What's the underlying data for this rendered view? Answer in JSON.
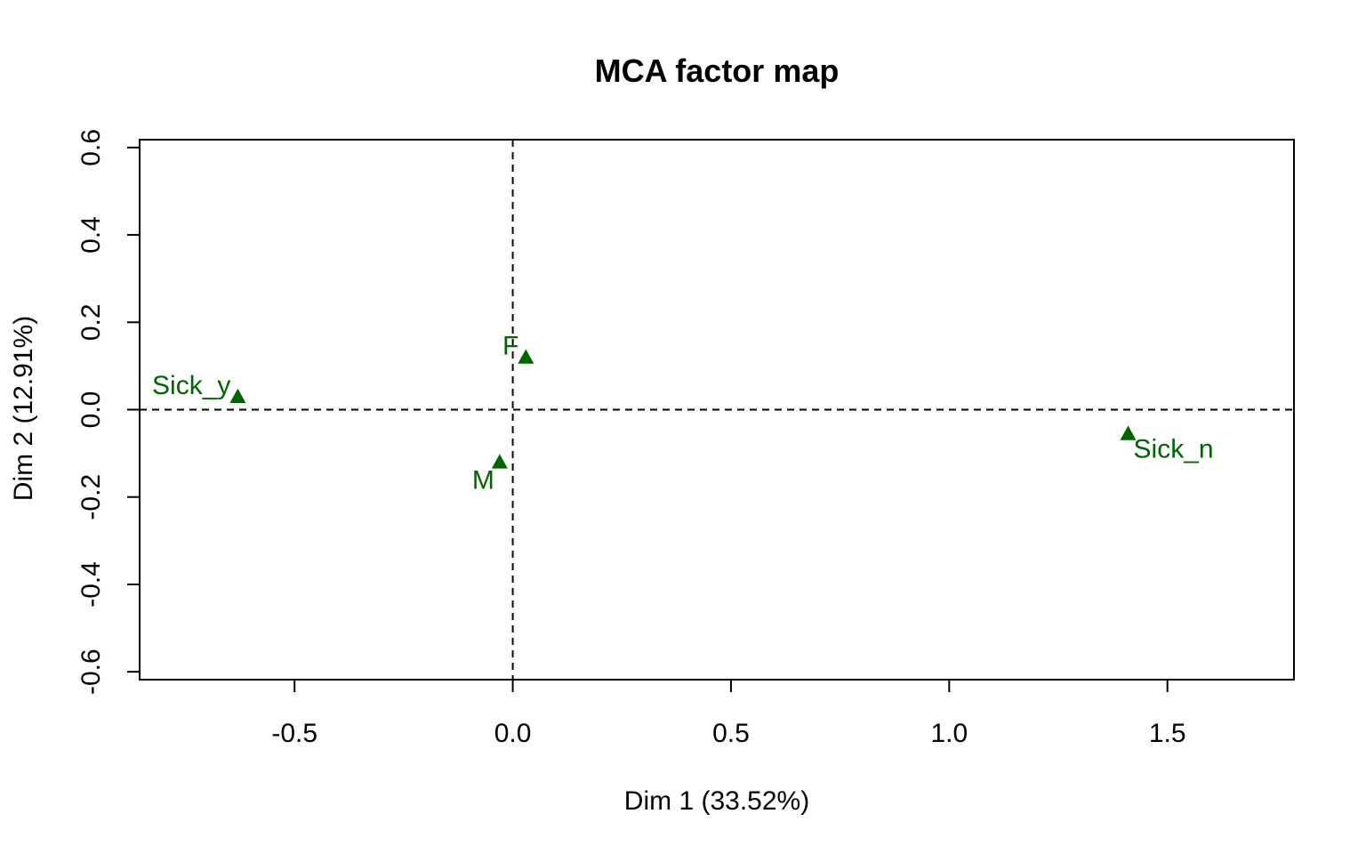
{
  "chart_data": {
    "type": "scatter",
    "title": "MCA factor map",
    "xlabel": "Dim 1 (33.52%)",
    "ylabel": "Dim 2 (12.91%)",
    "xlim": [
      -0.855,
      1.79
    ],
    "ylim": [
      -0.618,
      0.618
    ],
    "xticks": [
      -0.5,
      0.0,
      0.5,
      1.0,
      1.5
    ],
    "xtick_labels": [
      "-0.5",
      "0.0",
      "0.5",
      "1.0",
      "1.5"
    ],
    "yticks": [
      -0.6,
      -0.4,
      -0.2,
      0.0,
      0.2,
      0.4,
      0.6
    ],
    "ytick_labels": [
      "-0.6",
      "-0.4",
      "-0.2",
      "0.0",
      "0.2",
      "0.4",
      "0.6"
    ],
    "reference_lines": {
      "x": 0,
      "y": 0,
      "style": "dashed"
    },
    "grid": false,
    "marker": "triangle",
    "point_color": "#006400",
    "points": [
      {
        "label": "F",
        "x": 0.03,
        "y": 0.12,
        "label_side": "left"
      },
      {
        "label": "M",
        "x": -0.03,
        "y": -0.12,
        "label_side": "below-left"
      },
      {
        "label": "Sick_y",
        "x": -0.63,
        "y": 0.03,
        "label_side": "left"
      },
      {
        "label": "Sick_n",
        "x": 1.41,
        "y": -0.055,
        "label_side": "below-right"
      }
    ]
  }
}
